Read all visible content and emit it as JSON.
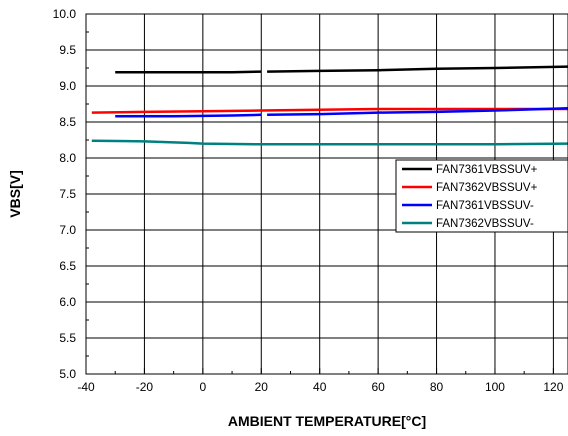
{
  "chart_data": {
    "type": "line",
    "xlabel": "AMBIENT TEMPERATURE[°C]",
    "ylabel": "VBS[V]",
    "xlim": [
      -40,
      125
    ],
    "ylim": [
      5.0,
      10.0
    ],
    "x_ticks": [
      -40,
      -20,
      0,
      20,
      40,
      60,
      80,
      100,
      120
    ],
    "x_tick_labels": [
      "-40",
      "-20",
      "0",
      "20",
      "40",
      "60",
      "80",
      "100",
      "120"
    ],
    "y_ticks": [
      5.0,
      5.5,
      6.0,
      6.5,
      7.0,
      7.5,
      8.0,
      8.5,
      9.0,
      9.5,
      10.0
    ],
    "y_tick_labels": [
      "5.0",
      "5.5",
      "6.0",
      "6.5",
      "7.0",
      "7.5",
      "8.0",
      "8.5",
      "9.0",
      "9.5",
      "10.0"
    ],
    "grid": true,
    "legend_position": "right",
    "series": [
      {
        "name": "FAN7361VBSSUV+",
        "color": "#000000",
        "segments": [
          {
            "x": [
              -30,
              -10,
              10,
              20
            ],
            "y": [
              9.19,
              9.19,
              9.19,
              9.2
            ]
          },
          {
            "x": [
              22,
              40,
              60,
              80,
              100,
              125
            ],
            "y": [
              9.2,
              9.21,
              9.22,
              9.24,
              9.25,
              9.27
            ]
          }
        ]
      },
      {
        "name": "FAN7362VBSSUV+",
        "color": "#ff0000",
        "segments": [
          {
            "x": [
              -38,
              -20,
              0,
              20,
              40,
              60,
              80,
              100,
              125
            ],
            "y": [
              8.63,
              8.64,
              8.65,
              8.66,
              8.67,
              8.68,
              8.68,
              8.68,
              8.68
            ]
          }
        ]
      },
      {
        "name": "FAN7361VBSSUV-",
        "color": "#0000ff",
        "segments": [
          {
            "x": [
              -30,
              -10,
              10,
              20
            ],
            "y": [
              8.58,
              8.58,
              8.59,
              8.6
            ]
          },
          {
            "x": [
              22,
              40,
              60,
              80,
              100,
              125
            ],
            "y": [
              8.6,
              8.61,
              8.63,
              8.64,
              8.66,
              8.69
            ]
          }
        ]
      },
      {
        "name": "FAN7362VBSSUV-",
        "color": "#008080",
        "segments": [
          {
            "x": [
              -38,
              -20,
              -5,
              0,
              20,
              40,
              60,
              80,
              100,
              125
            ],
            "y": [
              8.24,
              8.23,
              8.21,
              8.2,
              8.19,
              8.19,
              8.19,
              8.19,
              8.19,
              8.2
            ]
          }
        ]
      }
    ]
  }
}
